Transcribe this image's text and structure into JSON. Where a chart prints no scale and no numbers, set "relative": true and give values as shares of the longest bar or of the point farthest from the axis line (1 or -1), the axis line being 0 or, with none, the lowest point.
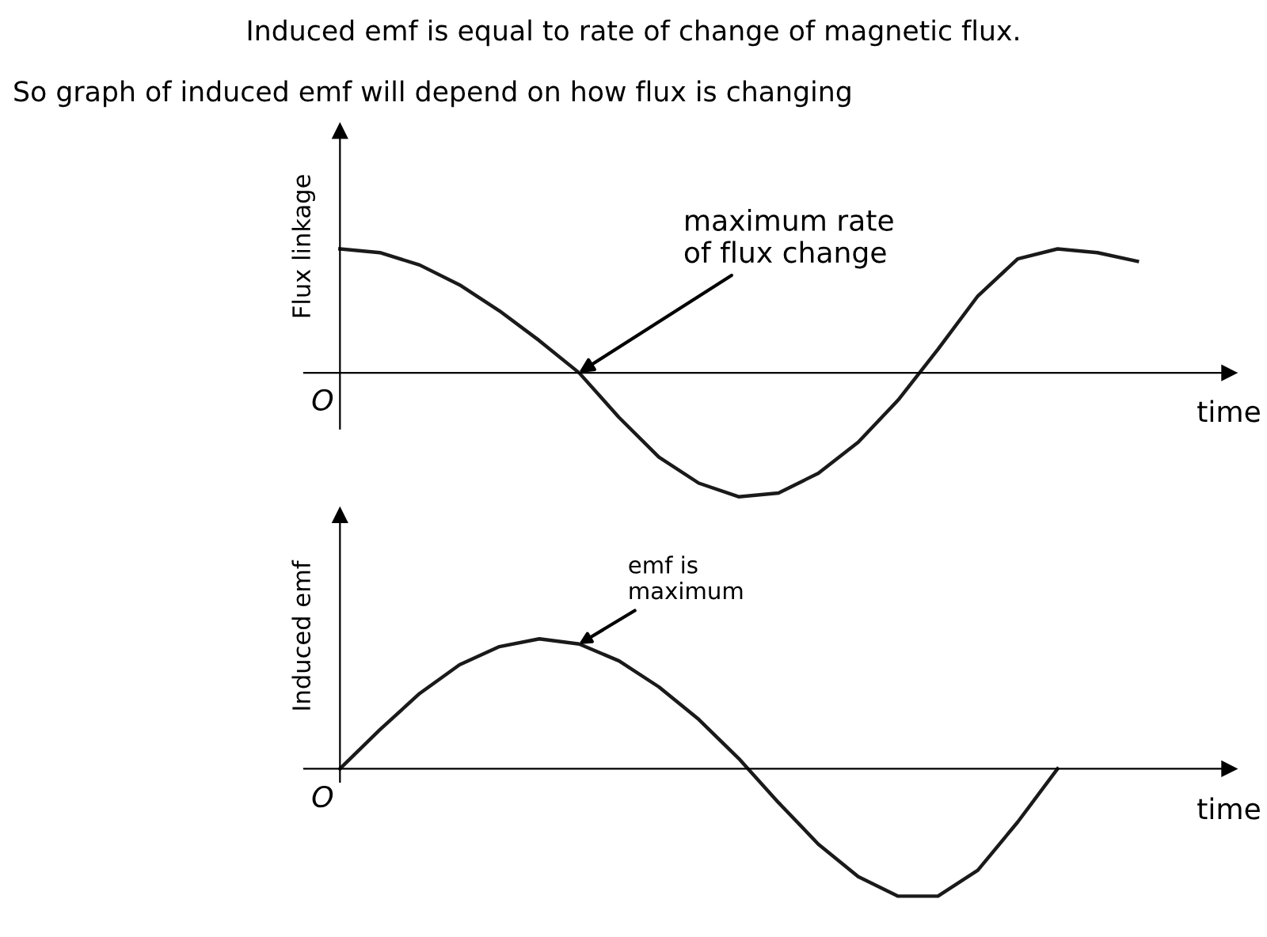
{
  "chart_data": [
    {
      "type": "line",
      "title": "Induced emf is equal to rate of change of magnetic flux.",
      "subtitle": "So graph of induced emf will depend on how flux is changing",
      "ylabel": "Flux linkage",
      "xlabel": "time",
      "relative": true,
      "categories": [
        null,
        null,
        null,
        null,
        null,
        null,
        null,
        null,
        null,
        null,
        null,
        null,
        null,
        null,
        null,
        null,
        null,
        null,
        null,
        null,
        null
      ],
      "series": [
        {
          "color": "#1a1a1a",
          "values": [
            1,
            0.97,
            0.87,
            0.71,
            0.5,
            0.26,
            0,
            -0.36,
            -0.68,
            -0.89,
            -1,
            -0.97,
            -0.81,
            -0.56,
            -0.22,
            0.19,
            0.62,
            0.92,
            1,
            0.97,
            0.9
          ]
        }
      ],
      "annotations": [
        "O",
        "maximum rate\nof flux change"
      ],
      "legend": false,
      "marker": "none",
      "line_style": "solid"
    },
    {
      "type": "line",
      "ylabel": "Induced emf",
      "xlabel": "time",
      "relative": true,
      "categories": [
        null,
        null,
        null,
        null,
        null,
        null,
        null,
        null,
        null,
        null,
        null,
        null,
        null,
        null,
        null,
        null,
        null,
        null,
        null,
        null,
        null
      ],
      "series": [
        {
          "color": "#1a1a1a",
          "values": [
            0,
            0.3,
            0.58,
            0.8,
            0.94,
            1,
            0.96,
            0.83,
            0.63,
            0.38,
            0.08,
            -0.26,
            -0.58,
            -0.83,
            -0.98,
            -0.98,
            -0.78,
            -0.41,
            0,
            null,
            null
          ]
        }
      ],
      "annotations": [
        "O",
        "emf is\nmaximum"
      ],
      "legend": false,
      "marker": "none",
      "line_style": "solid"
    }
  ]
}
